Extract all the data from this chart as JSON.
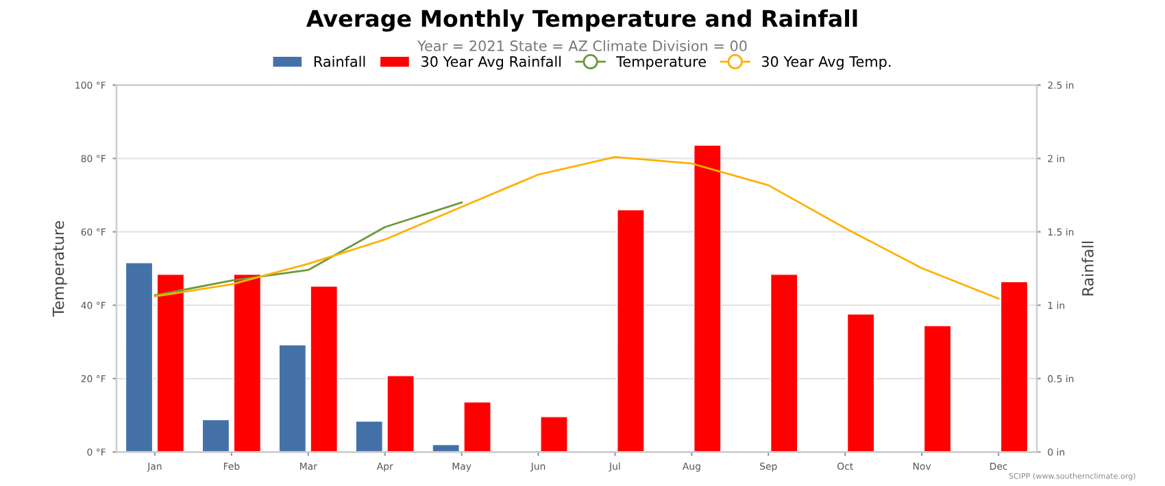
{
  "chart_data": {
    "type": "bar",
    "title": "Average Monthly Temperature and Rainfall",
    "subtitle": "Year = 2021 State = AZ Climate Division = 00",
    "ylabel": "Temperature",
    "y2label": "Rainfall",
    "categories": [
      "Jan",
      "Feb",
      "Mar",
      "Apr",
      "May",
      "Jun",
      "Jul",
      "Aug",
      "Sep",
      "Oct",
      "Nov",
      "Dec"
    ],
    "series": [
      {
        "name": "Rainfall",
        "axis": "y2",
        "color": "#4472a8",
        "values": [
          1.29,
          0.22,
          0.73,
          0.21,
          0.05,
          null,
          null,
          null,
          null,
          null,
          null,
          null
        ]
      },
      {
        "name": "30 Year Avg Rainfall",
        "axis": "y2",
        "color": "#ff0000",
        "values": [
          1.21,
          1.21,
          1.13,
          0.52,
          0.34,
          0.24,
          1.65,
          2.09,
          1.21,
          0.94,
          0.86,
          1.16
        ]
      },
      {
        "name": "Temperature",
        "type": "line",
        "color": "#6b9a3a",
        "values": [
          42.7,
          46.7,
          49.6,
          61.3,
          68.0,
          null,
          null,
          null,
          null,
          null,
          null,
          null
        ]
      },
      {
        "name": "30 Year Avg Temp.",
        "type": "line",
        "color": "#ffb000",
        "values": [
          42.4,
          45.7,
          51.3,
          57.9,
          66.8,
          75.6,
          80.4,
          78.6,
          72.7,
          61.0,
          50.1,
          41.8
        ]
      }
    ],
    "ylim": [
      0,
      100
    ],
    "yticks": [
      {
        "value": 0,
        "label": "0 °F"
      },
      {
        "value": 20,
        "label": "20 °F"
      },
      {
        "value": 40,
        "label": "40 °F"
      },
      {
        "value": 60,
        "label": "60 °F"
      },
      {
        "value": 80,
        "label": "80 °F"
      },
      {
        "value": 100,
        "label": "100 °F"
      }
    ],
    "y2lim": [
      0,
      2.5
    ],
    "y2ticks": [
      {
        "value": 0,
        "label": "0 in"
      },
      {
        "value": 0.5,
        "label": "0.5 in"
      },
      {
        "value": 1,
        "label": "1 in"
      },
      {
        "value": 1.5,
        "label": "1.5 in"
      },
      {
        "value": 2,
        "label": "2 in"
      },
      {
        "value": 2.5,
        "label": "2.5 in"
      }
    ],
    "grid": "y",
    "legend": "top",
    "line_style": "solid",
    "annotations": [
      "SCIPP (www.southernclimate.org)"
    ]
  }
}
